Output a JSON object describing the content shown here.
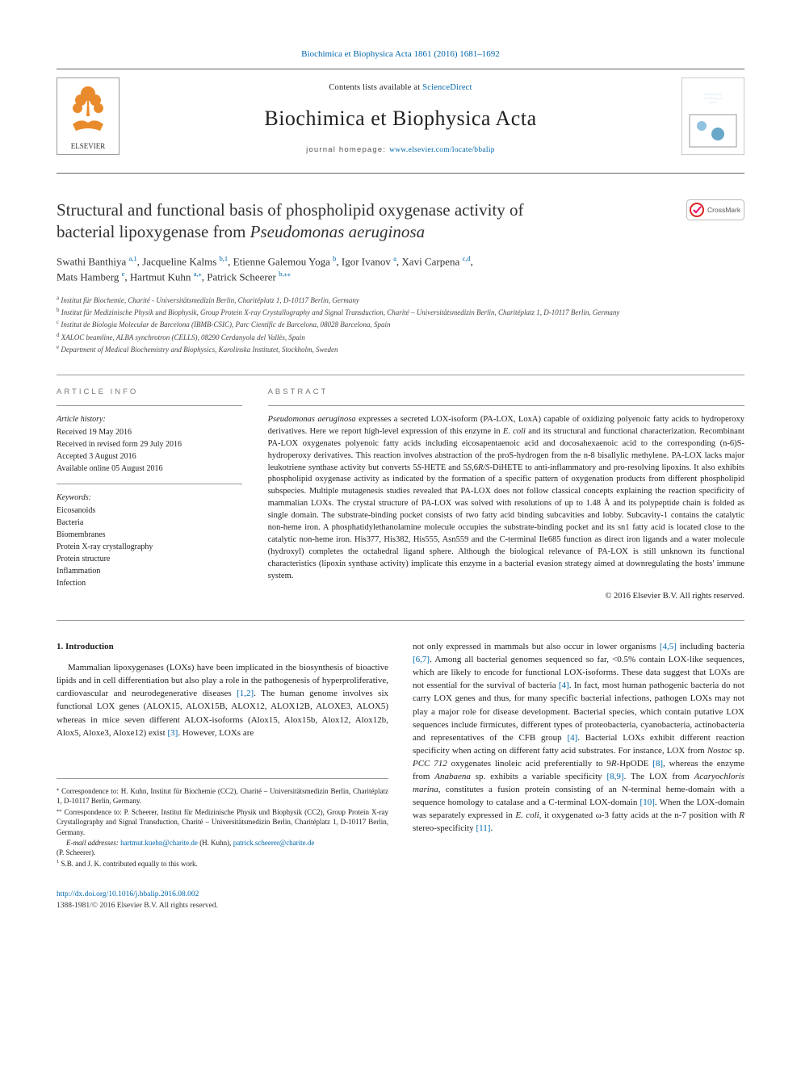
{
  "journal_ref": "Biochimica et Biophysica Acta 1861 (2016) 1681–1692",
  "masthead": {
    "sciencedirect_prefix": "Contents lists available at ",
    "sciencedirect_link": "ScienceDirect",
    "journal_title": "Biochimica et Biophysica Acta",
    "homepage_label": "journal homepage: ",
    "homepage_url": "www.elsevier.com/locate/bbalip",
    "elsevier_brand": "ELSEVIER",
    "crossmark_label": "CrossMark"
  },
  "title": {
    "line1": "Structural and functional basis of phospholipid oxygenase activity of",
    "line2_prefix": "bacterial lipoxygenase from ",
    "line2_species": "Pseudomonas aeruginosa"
  },
  "authors": {
    "a1_name": "Swathi Banthiya ",
    "a1_aff": "a,1",
    "a2_name": ", Jacqueline Kalms ",
    "a2_aff": "b,1",
    "a3_name": ", Etienne Galemou Yoga ",
    "a3_aff": "b",
    "a4_name": ", Igor Ivanov ",
    "a4_aff": "a",
    "a5_name": ", Xavi Carpena ",
    "a5_aff": "c,d",
    "a6_name": "Mats Hamberg ",
    "a6_aff": "e",
    "a7_name": ", Hartmut Kuhn ",
    "a7_aff": "a,",
    "a7_star": "⁎",
    "a8_name": ", Patrick Scheerer ",
    "a8_aff": "b,",
    "a8_star": "⁎⁎"
  },
  "affiliations": {
    "a": "Institut für Biochemie, Charité - Universitätsmedizin Berlin, Charitéplatz 1, D-10117 Berlin, Germany",
    "b": "Institut für Medizinische Physik und Biophysik, Group Protein X-ray Crystallography and Signal Transduction, Charité – Universitätsmedizin Berlin, Charitéplatz 1, D-10117 Berlin, Germany",
    "c": "Institut de Biologia Molecular de Barcelona (IBMB-CSIC), Parc Científic de Barcelona, 08028 Barcelona, Spain",
    "d": "XALOC beamline, ALBA synchrotron (CELLS), 08290 Cerdanyola del Vallès, Spain",
    "e": "Department of Medical Biochemistry and Biophysics, Karolinska Institutet, Stockholm, Sweden"
  },
  "info": {
    "section_label": "article info",
    "history_label": "Article history:",
    "hist": [
      "Received 19 May 2016",
      "Received in revised form 29 July 2016",
      "Accepted 3 August 2016",
      "Available online 05 August 2016"
    ],
    "kw_label": "Keywords:",
    "kw": [
      "Eicosanoids",
      "Bacteria",
      "Biomembranes",
      "Protein X-ray crystallography",
      "Protein structure",
      "Inflammation",
      "Infection"
    ]
  },
  "abstract": {
    "section_label": "abstract",
    "text": "Pseudomonas aeruginosa expresses a secreted LOX-isoform (PA-LOX, LoxA) capable of oxidizing polyenoic fatty acids to hydroperoxy derivatives. Here we report high-level expression of this enzyme in E. coli and its structural and functional characterization. Recombinant PA-LOX oxygenates polyenoic fatty acids including eicosapentaenoic acid and docosahexaenoic acid to the corresponding (n-6)S-hydroperoxy derivatives. This reaction involves abstraction of the proS-hydrogen from the n-8 bisallylic methylene. PA-LOX lacks major leukotriene synthase activity but converts 5S-HETE and 5S,6R/S-DiHETE to anti-inflammatory and pro-resolving lipoxins. It also exhibits phospholipid oxygenase activity as indicated by the formation of a specific pattern of oxygenation products from different phospholipid subspecies. Multiple mutagenesis studies revealed that PA-LOX does not follow classical concepts explaining the reaction specificity of mammalian LOXs. The crystal structure of PA-LOX was solved with resolutions of up to 1.48 Å and its polypeptide chain is folded as single domain. The substrate-binding pocket consists of two fatty acid binding subcavities and lobby. Subcavity-1 contains the catalytic non-heme iron. A phosphatidylethanolamine molecule occupies the substrate-binding pocket and its sn1 fatty acid is located close to the catalytic non-heme iron. His377, His382, His555, Asn559 and the C-terminal Ile685 function as direct iron ligands and a water molecule (hydroxyl) completes the octahedral ligand sphere. Although the biological relevance of PA-LOX is still unknown its functional characteristics (lipoxin synthase activity) implicate this enzyme in a bacterial evasion strategy aimed at downregulating the hosts' immune system.",
    "copyright": "© 2016 Elsevier B.V. All rights reserved."
  },
  "body": {
    "heading": "1. Introduction",
    "left": "Mammalian lipoxygenases (LOXs) have been implicated in the biosynthesis of bioactive lipids and in cell differentiation but also play a role in the pathogenesis of hyperproliferative, cardiovascular and neurodegenerative diseases [1,2]. The human genome involves six functional LOX genes (ALOX15, ALOX15B, ALOX12, ALOX12B, ALOXE3, ALOX5) whereas in mice seven different ALOX-isoforms (Alox15, Alox15b, Alox12, Alox12b, Alox5, Aloxe3, Aloxe12) exist [3]. However, LOXs are",
    "right_p1": "not only expressed in mammals but also occur in lower organisms [4,5] including bacteria [6,7]. Among all bacterial genomes sequenced so far, <0.5% contain LOX-like sequences, which are likely to encode for functional LOX-isoforms. These data suggest that LOXs are not essential for the survival of bacteria [4]. In fact, most human pathogenic bacteria do not carry LOX genes and thus, for many specific bacterial infections, pathogen LOXs may not play a major role for disease development. Bacterial species, which contain putative LOX sequences include firmicutes, different types of proteobacteria, cyanobacteria, actinobacteria and representatives of the CFB group [4]. Bacterial LOXs exhibit different reaction specificity when acting on different fatty acid substrates. For instance, LOX from Nostoc sp. PCC 712 oxygenates linoleic acid preferentially to 9R-HpODE [8], whereas the enzyme from Anabaena sp. exhibits a variable specificity [8,9]. The LOX from Acaryochloris marina, constitutes a fusion protein consisting of an N-terminal heme-domain with a sequence homology to catalase and a C-terminal LOX-domain [10]. When the LOX-domain was separately expressed in E. coli, it oxygenated ω-3 fatty acids at the n-7 position with R stereo-specificity [11]."
  },
  "footnotes": {
    "corr1_star": "⁎",
    "corr1": "Correspondence to: H. Kuhn, Institut für Biochemie (CC2), Charité – Universitätsmedizin Berlin, Charitéplatz 1, D-10117 Berlin, Germany.",
    "corr2_star": "⁎⁎",
    "corr2": "Correspondence to: P. Scheerer, Institut für Medizinische Physik und Biophysik (CC2), Group Protein X-ray Crystallography and Signal Transduction, Charité – Universitätsmedizin Berlin, Charitéplatz 1, D-10117 Berlin, Germany.",
    "email_label": "E-mail addresses: ",
    "email1": "hartmut.kuehn@charite.de",
    "email1_who": " (H. Kuhn), ",
    "email2": "patrick.scheerer@charite.de",
    "email2_who": "(P. Scheerer).",
    "note1": "S.B. and J. K. contributed equally to this work.",
    "note1_sup": "1"
  },
  "footer": {
    "doi": "http://dx.doi.org/10.1016/j.bbalip.2016.08.002",
    "issn_copy": "1388-1981/© 2016 Elsevier B.V. All rights reserved."
  },
  "refs_blue": {
    "r12": "[1,2]",
    "r3": "[3]",
    "r45": "[4,5]",
    "r67": "[6,7]",
    "r4a": "[4]",
    "r4b": "[4]",
    "r8a": "[8]",
    "r89": "[8,9]",
    "r10": "[10]",
    "r11": "[11]"
  },
  "colors": {
    "link": "#0066aa",
    "rule": "#999999",
    "text": "#222222",
    "elsevier_orange": "#e98b2c",
    "bba_blue": "#0b4a6f"
  }
}
